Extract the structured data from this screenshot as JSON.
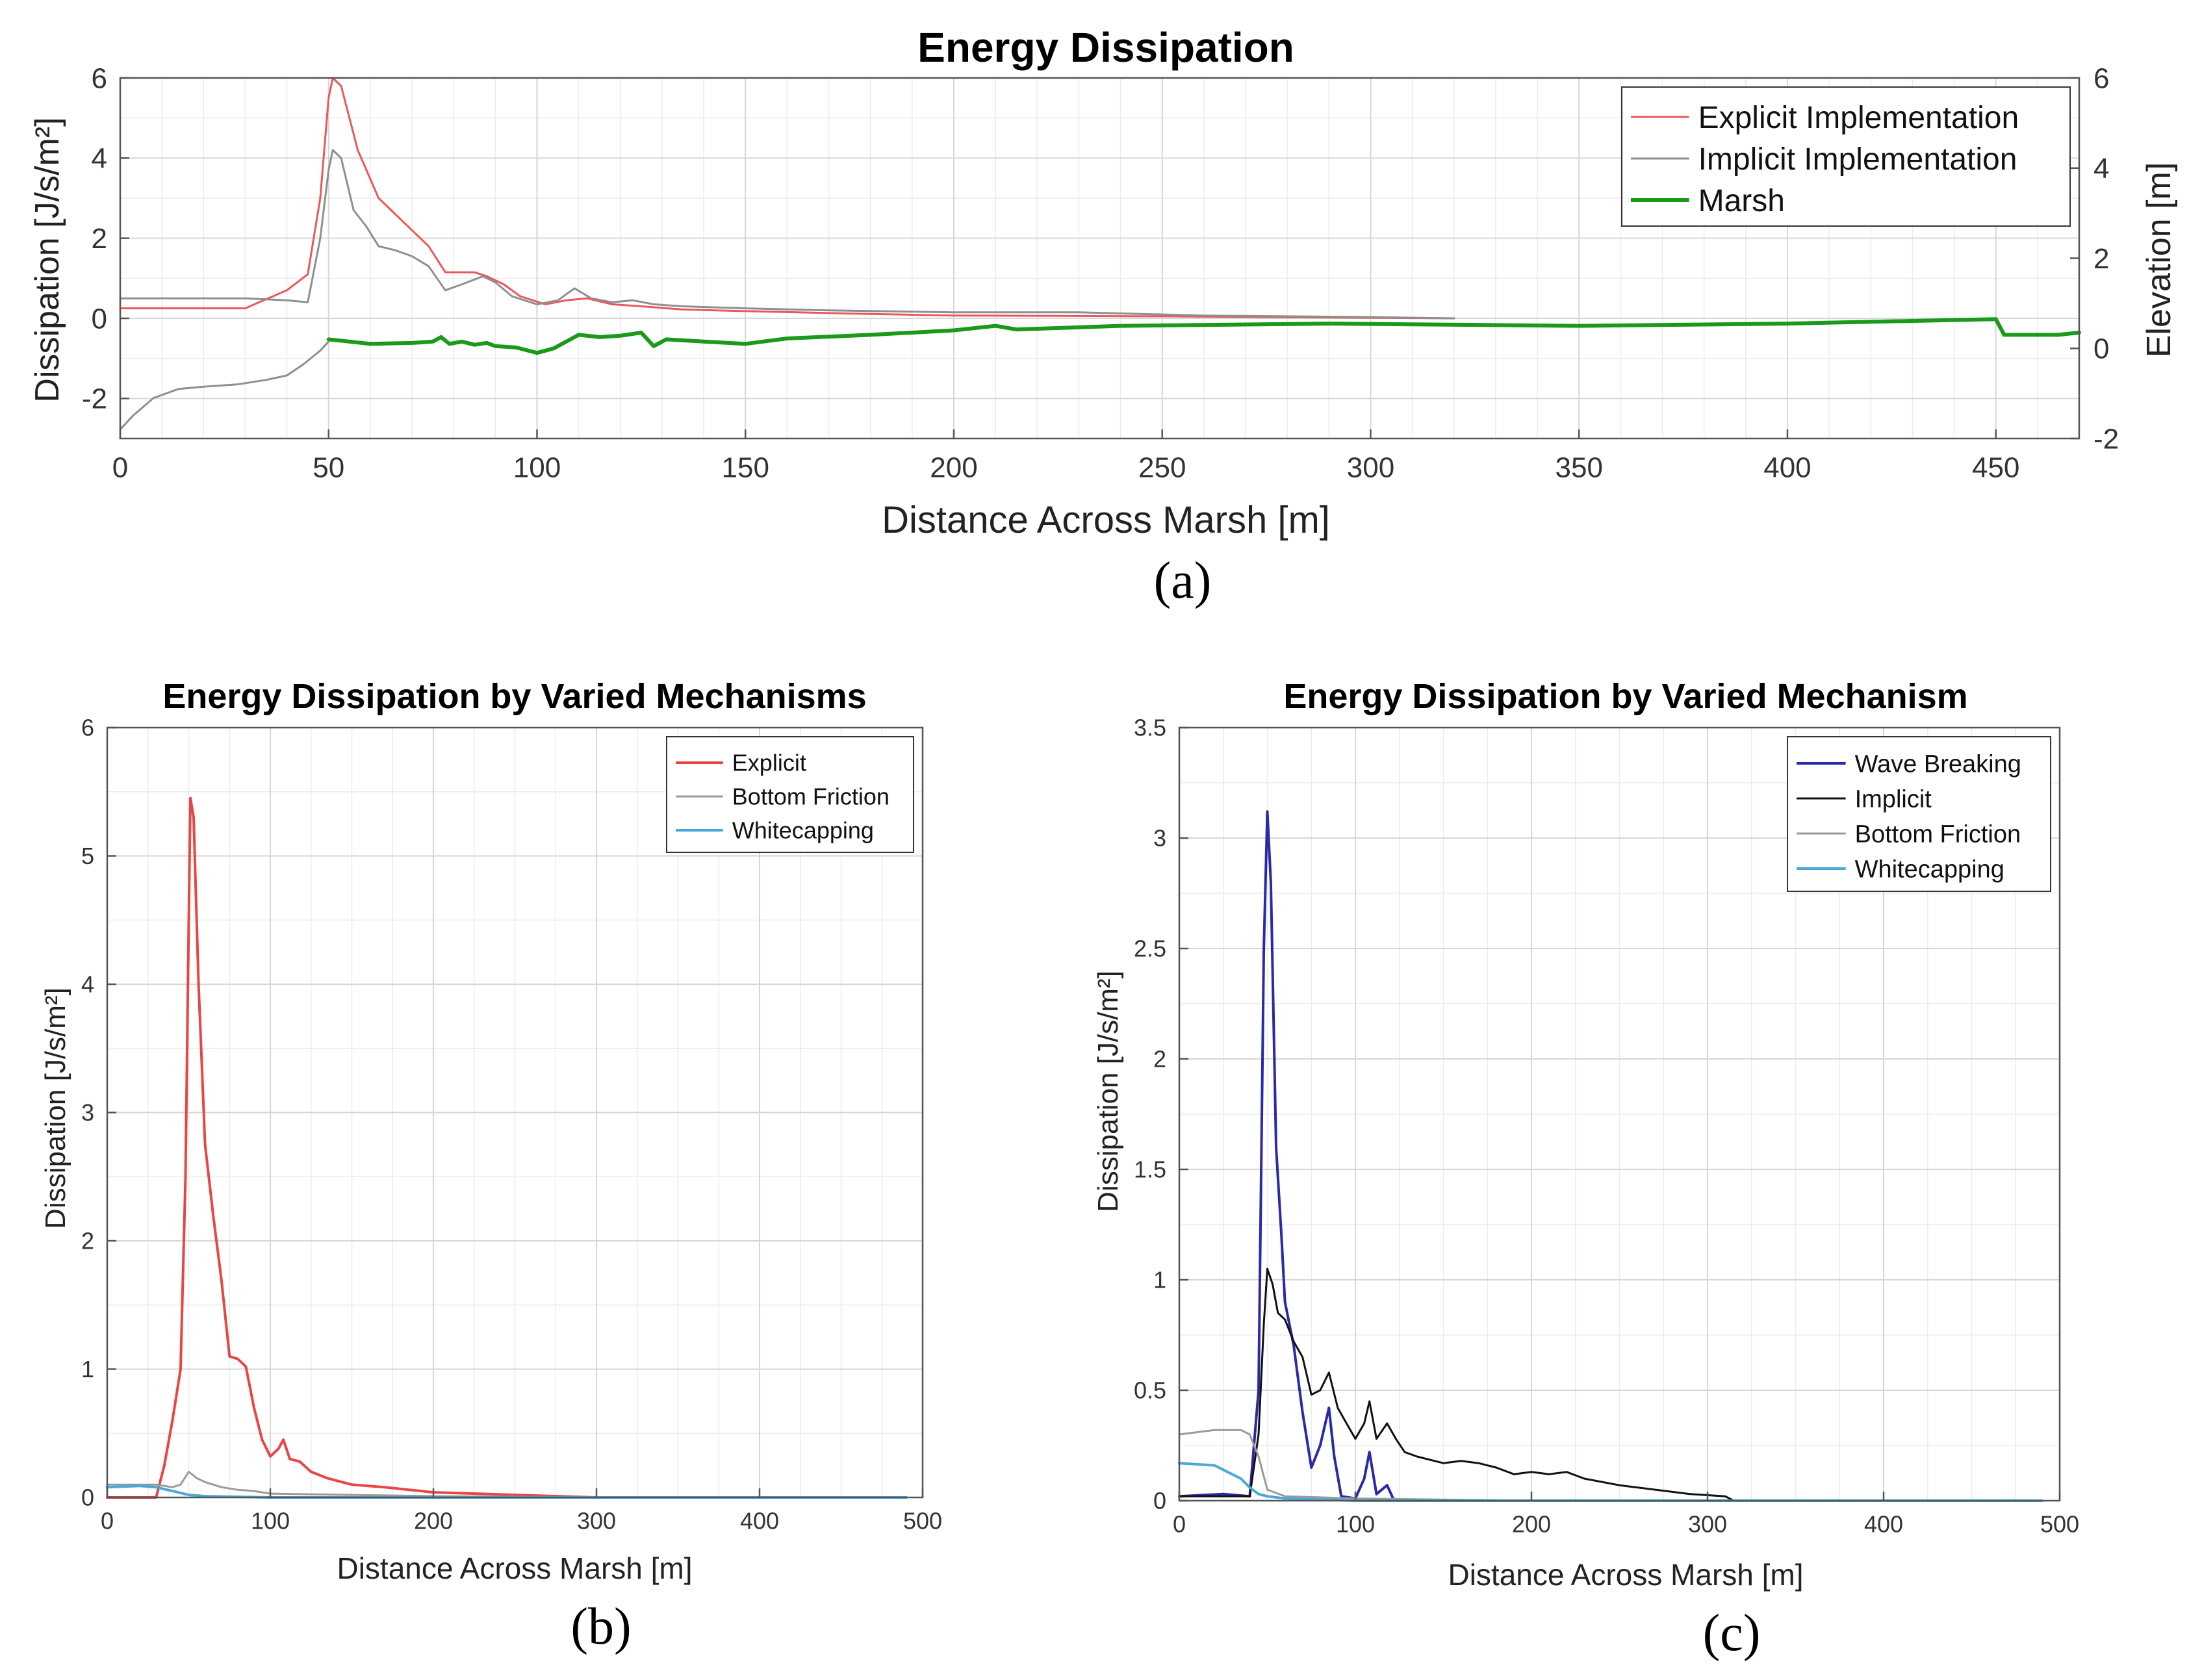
{
  "chart_data": [
    {
      "panel": "a",
      "type": "line",
      "caption": "(a)",
      "title": "Energy Dissipation",
      "xlabel": "Distance Across Marsh [m]",
      "ylabel": "Dissipation [J/s/m²]",
      "y2label": "Elevation [m]",
      "xlim": [
        0,
        470
      ],
      "ylim": [
        -3,
        6
      ],
      "y2lim": [
        -2,
        6
      ],
      "xticks": [
        0,
        50,
        100,
        150,
        200,
        250,
        300,
        350,
        400,
        450
      ],
      "yticks": [
        -2,
        0,
        2,
        4,
        6
      ],
      "y2ticks": [
        -2,
        0,
        2,
        4,
        6
      ],
      "grid": true,
      "legend_position": "top-right",
      "series": [
        {
          "name": "Explicit Implementation",
          "color": "#e85a5a",
          "axis": "left",
          "width": 3,
          "points": [
            [
              0,
              0.25
            ],
            [
              30,
              0.25
            ],
            [
              40,
              0.7
            ],
            [
              45,
              1.1
            ],
            [
              48,
              3.0
            ],
            [
              50,
              5.5
            ],
            [
              51,
              6.0
            ],
            [
              53,
              5.8
            ],
            [
              57,
              4.2
            ],
            [
              62,
              3.0
            ],
            [
              66,
              2.6
            ],
            [
              70,
              2.2
            ],
            [
              74,
              1.8
            ],
            [
              78,
              1.15
            ],
            [
              85,
              1.15
            ],
            [
              88,
              1.05
            ],
            [
              92,
              0.85
            ],
            [
              96,
              0.55
            ],
            [
              102,
              0.35
            ],
            [
              107,
              0.45
            ],
            [
              112,
              0.5
            ],
            [
              118,
              0.35
            ],
            [
              125,
              0.3
            ],
            [
              135,
              0.22
            ],
            [
              150,
              0.18
            ],
            [
              175,
              0.12
            ],
            [
              200,
              0.07
            ],
            [
              250,
              0.05
            ],
            [
              320,
              0.0
            ]
          ]
        },
        {
          "name": "Implicit Implementation",
          "color": "#8f8f8f",
          "axis": "left",
          "width": 3,
          "points": [
            [
              0,
              0.5
            ],
            [
              30,
              0.5
            ],
            [
              40,
              0.45
            ],
            [
              45,
              0.4
            ],
            [
              48,
              2.0
            ],
            [
              50,
              3.7
            ],
            [
              51,
              4.2
            ],
            [
              53,
              4.0
            ],
            [
              56,
              2.7
            ],
            [
              59,
              2.3
            ],
            [
              62,
              1.8
            ],
            [
              66,
              1.7
            ],
            [
              70,
              1.55
            ],
            [
              74,
              1.3
            ],
            [
              78,
              0.7
            ],
            [
              82,
              0.85
            ],
            [
              87,
              1.05
            ],
            [
              90,
              0.9
            ],
            [
              94,
              0.55
            ],
            [
              100,
              0.35
            ],
            [
              105,
              0.45
            ],
            [
              109,
              0.75
            ],
            [
              113,
              0.5
            ],
            [
              118,
              0.4
            ],
            [
              123,
              0.45
            ],
            [
              128,
              0.35
            ],
            [
              135,
              0.3
            ],
            [
              150,
              0.25
            ],
            [
              170,
              0.2
            ],
            [
              200,
              0.15
            ],
            [
              230,
              0.15
            ],
            [
              260,
              0.07
            ],
            [
              300,
              0.03
            ],
            [
              320,
              0.0
            ]
          ]
        },
        {
          "name": "Elevation (grey)",
          "legend": false,
          "color": "#8f8f8f",
          "axis": "right",
          "width": 3,
          "points": [
            [
              0,
              -1.8
            ],
            [
              3,
              -1.5
            ],
            [
              8,
              -1.1
            ],
            [
              14,
              -0.9
            ],
            [
              20,
              -0.85
            ],
            [
              28,
              -0.8
            ],
            [
              35,
              -0.7
            ],
            [
              40,
              -0.6
            ],
            [
              44,
              -0.35
            ],
            [
              48,
              -0.05
            ],
            [
              50,
              0.15
            ]
          ]
        },
        {
          "name": "Marsh",
          "color": "#1a9a1a",
          "axis": "right",
          "width": 6,
          "points": [
            [
              50,
              0.2
            ],
            [
              55,
              0.15
            ],
            [
              60,
              0.1
            ],
            [
              70,
              0.12
            ],
            [
              75,
              0.15
            ],
            [
              77,
              0.25
            ],
            [
              79,
              0.1
            ],
            [
              82,
              0.15
            ],
            [
              85,
              0.08
            ],
            [
              88,
              0.12
            ],
            [
              90,
              0.05
            ],
            [
              95,
              0.02
            ],
            [
              100,
              -0.1
            ],
            [
              104,
              0.0
            ],
            [
              108,
              0.2
            ],
            [
              110,
              0.3
            ],
            [
              115,
              0.25
            ],
            [
              120,
              0.28
            ],
            [
              125,
              0.35
            ],
            [
              128,
              0.05
            ],
            [
              131,
              0.2
            ],
            [
              140,
              0.15
            ],
            [
              150,
              0.1
            ],
            [
              160,
              0.22
            ],
            [
              180,
              0.3
            ],
            [
              200,
              0.4
            ],
            [
              210,
              0.5
            ],
            [
              215,
              0.42
            ],
            [
              240,
              0.5
            ],
            [
              290,
              0.55
            ],
            [
              350,
              0.5
            ],
            [
              400,
              0.55
            ],
            [
              450,
              0.65
            ],
            [
              452,
              0.3
            ],
            [
              465,
              0.3
            ],
            [
              470,
              0.35
            ]
          ]
        }
      ]
    },
    {
      "panel": "b",
      "type": "line",
      "caption": "(b)",
      "title": "Energy Dissipation by Varied Mechanisms",
      "xlabel": "Distance Across Marsh [m]",
      "ylabel": "Dissipation [J/s/m²]",
      "xlim": [
        0,
        500
      ],
      "ylim": [
        0,
        6
      ],
      "xticks": [
        0,
        100,
        200,
        300,
        400,
        500
      ],
      "yticks": [
        0,
        1,
        2,
        3,
        4,
        5,
        6
      ],
      "grid": true,
      "legend_position": "top-right",
      "series": [
        {
          "name": "Explicit",
          "color": "#e84545",
          "width": 4,
          "points": [
            [
              0,
              0
            ],
            [
              30,
              0
            ],
            [
              35,
              0.25
            ],
            [
              40,
              0.6
            ],
            [
              45,
              1.0
            ],
            [
              48,
              2.5
            ],
            [
              50,
              4.5
            ],
            [
              51,
              5.45
            ],
            [
              53,
              5.3
            ],
            [
              56,
              4.0
            ],
            [
              60,
              2.75
            ],
            [
              65,
              2.2
            ],
            [
              70,
              1.7
            ],
            [
              75,
              1.1
            ],
            [
              80,
              1.08
            ],
            [
              85,
              1.02
            ],
            [
              90,
              0.7
            ],
            [
              95,
              0.45
            ],
            [
              100,
              0.32
            ],
            [
              105,
              0.38
            ],
            [
              108,
              0.45
            ],
            [
              112,
              0.3
            ],
            [
              118,
              0.28
            ],
            [
              125,
              0.2
            ],
            [
              135,
              0.15
            ],
            [
              150,
              0.1
            ],
            [
              170,
              0.08
            ],
            [
              200,
              0.04
            ],
            [
              250,
              0.02
            ],
            [
              300,
              0.0
            ]
          ]
        },
        {
          "name": "Bottom Friction",
          "color": "#9a9a9a",
          "width": 3,
          "points": [
            [
              0,
              0.1
            ],
            [
              30,
              0.1
            ],
            [
              40,
              0.08
            ],
            [
              45,
              0.1
            ],
            [
              50,
              0.2
            ],
            [
              55,
              0.15
            ],
            [
              60,
              0.12
            ],
            [
              70,
              0.08
            ],
            [
              80,
              0.06
            ],
            [
              90,
              0.05
            ],
            [
              100,
              0.03
            ],
            [
              150,
              0.02
            ],
            [
              200,
              0.01
            ],
            [
              300,
              0.0
            ]
          ]
        },
        {
          "name": "Whitecapping",
          "color": "#4aa8d8",
          "width": 4,
          "points": [
            [
              0,
              0.08
            ],
            [
              20,
              0.09
            ],
            [
              30,
              0.08
            ],
            [
              40,
              0.05
            ],
            [
              50,
              0.02
            ],
            [
              60,
              0.01
            ],
            [
              100,
              0.0
            ],
            [
              300,
              0.0
            ],
            [
              490,
              0.0
            ]
          ]
        }
      ]
    },
    {
      "panel": "c",
      "type": "line",
      "caption": "(c)",
      "title": "Energy Dissipation by Varied Mechanism",
      "xlabel": "Distance Across Marsh [m]",
      "ylabel": "Dissipation [J/s/m²]",
      "xlim": [
        0,
        500
      ],
      "ylim": [
        0,
        3.5
      ],
      "xticks": [
        0,
        100,
        200,
        300,
        400,
        500
      ],
      "yticks": [
        0,
        0.5,
        1,
        1.5,
        2,
        2.5,
        3,
        3.5
      ],
      "grid": true,
      "legend_position": "top-right",
      "series": [
        {
          "name": "Wave Breaking",
          "color": "#2a2aa8",
          "width": 4,
          "points": [
            [
              0,
              0.02
            ],
            [
              25,
              0.03
            ],
            [
              40,
              0.02
            ],
            [
              45,
              0.5
            ],
            [
              48,
              2.5
            ],
            [
              50,
              3.12
            ],
            [
              52,
              2.8
            ],
            [
              55,
              1.6
            ],
            [
              58,
              1.2
            ],
            [
              60,
              0.9
            ],
            [
              65,
              0.7
            ],
            [
              70,
              0.4
            ],
            [
              75,
              0.15
            ],
            [
              80,
              0.25
            ],
            [
              85,
              0.42
            ],
            [
              88,
              0.2
            ],
            [
              92,
              0.02
            ],
            [
              100,
              0.01
            ],
            [
              105,
              0.1
            ],
            [
              108,
              0.22
            ],
            [
              112,
              0.03
            ],
            [
              118,
              0.07
            ],
            [
              122,
              0.0
            ],
            [
              200,
              0.0
            ],
            [
              320,
              0.0
            ]
          ]
        },
        {
          "name": "Implicit",
          "color": "#111111",
          "width": 3,
          "points": [
            [
              0,
              0.02
            ],
            [
              40,
              0.02
            ],
            [
              45,
              0.3
            ],
            [
              48,
              0.8
            ],
            [
              50,
              1.05
            ],
            [
              53,
              0.98
            ],
            [
              56,
              0.85
            ],
            [
              60,
              0.82
            ],
            [
              65,
              0.72
            ],
            [
              70,
              0.65
            ],
            [
              75,
              0.48
            ],
            [
              80,
              0.5
            ],
            [
              85,
              0.58
            ],
            [
              90,
              0.42
            ],
            [
              95,
              0.35
            ],
            [
              100,
              0.28
            ],
            [
              105,
              0.35
            ],
            [
              108,
              0.45
            ],
            [
              112,
              0.28
            ],
            [
              118,
              0.35
            ],
            [
              123,
              0.28
            ],
            [
              128,
              0.22
            ],
            [
              135,
              0.2
            ],
            [
              150,
              0.17
            ],
            [
              160,
              0.18
            ],
            [
              170,
              0.17
            ],
            [
              180,
              0.15
            ],
            [
              190,
              0.12
            ],
            [
              200,
              0.13
            ],
            [
              210,
              0.12
            ],
            [
              220,
              0.13
            ],
            [
              230,
              0.1
            ],
            [
              250,
              0.07
            ],
            [
              270,
              0.05
            ],
            [
              290,
              0.03
            ],
            [
              310,
              0.02
            ],
            [
              315,
              0.0
            ]
          ]
        },
        {
          "name": "Bottom Friction",
          "color": "#9a9a9a",
          "width": 3,
          "points": [
            [
              0,
              0.3
            ],
            [
              20,
              0.32
            ],
            [
              35,
              0.32
            ],
            [
              40,
              0.3
            ],
            [
              45,
              0.2
            ],
            [
              50,
              0.05
            ],
            [
              60,
              0.02
            ],
            [
              100,
              0.01
            ],
            [
              200,
              0.0
            ],
            [
              320,
              0.0
            ]
          ]
        },
        {
          "name": "Whitecapping",
          "color": "#4aa8d8",
          "width": 4,
          "points": [
            [
              0,
              0.17
            ],
            [
              20,
              0.16
            ],
            [
              35,
              0.1
            ],
            [
              40,
              0.06
            ],
            [
              45,
              0.03
            ],
            [
              50,
              0.02
            ],
            [
              60,
              0.01
            ],
            [
              100,
              0.0
            ],
            [
              300,
              0.0
            ],
            [
              490,
              0.0
            ]
          ]
        }
      ]
    }
  ]
}
